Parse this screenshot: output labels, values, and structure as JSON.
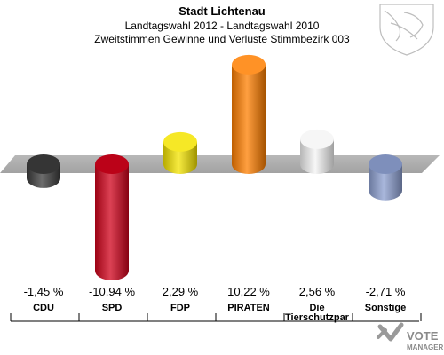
{
  "chart_data": {
    "type": "bar",
    "title": "Stadt Lichtenau",
    "subtitle": "Landtagswahl 2012 - Landtagswahl 2010",
    "subtitle2": "Zweitstimmen Gewinne und Verluste Stimmbezirk 003",
    "categories": [
      "CDU",
      "SPD",
      "FDP",
      "PIRATEN",
      "Die Tierschutzpartei",
      "Sonstige"
    ],
    "category_labels_line1": [
      "CDU",
      "SPD",
      "FDP",
      "PIRATEN",
      "Die",
      "Sonstige"
    ],
    "category_labels_line2": [
      "",
      "",
      "",
      "",
      "Tierschutzpar",
      ""
    ],
    "values": [
      -1.45,
      -10.94,
      2.29,
      10.22,
      2.56,
      -2.71
    ],
    "value_labels": [
      "-1,45 %",
      "-10,94 %",
      "2,29 %",
      "10,22 %",
      "2,56 %",
      "-2,71 %"
    ],
    "colors": [
      "#3b3b3b",
      "#d0021b",
      "#f4e400",
      "#ff7f00",
      "#f4f4f4",
      "#8c9fd0"
    ],
    "ylim": [
      -10.94,
      10.22
    ],
    "grid": false
  },
  "logo": {
    "text_line1": "VOTE",
    "text_line2": "MANAGER"
  }
}
